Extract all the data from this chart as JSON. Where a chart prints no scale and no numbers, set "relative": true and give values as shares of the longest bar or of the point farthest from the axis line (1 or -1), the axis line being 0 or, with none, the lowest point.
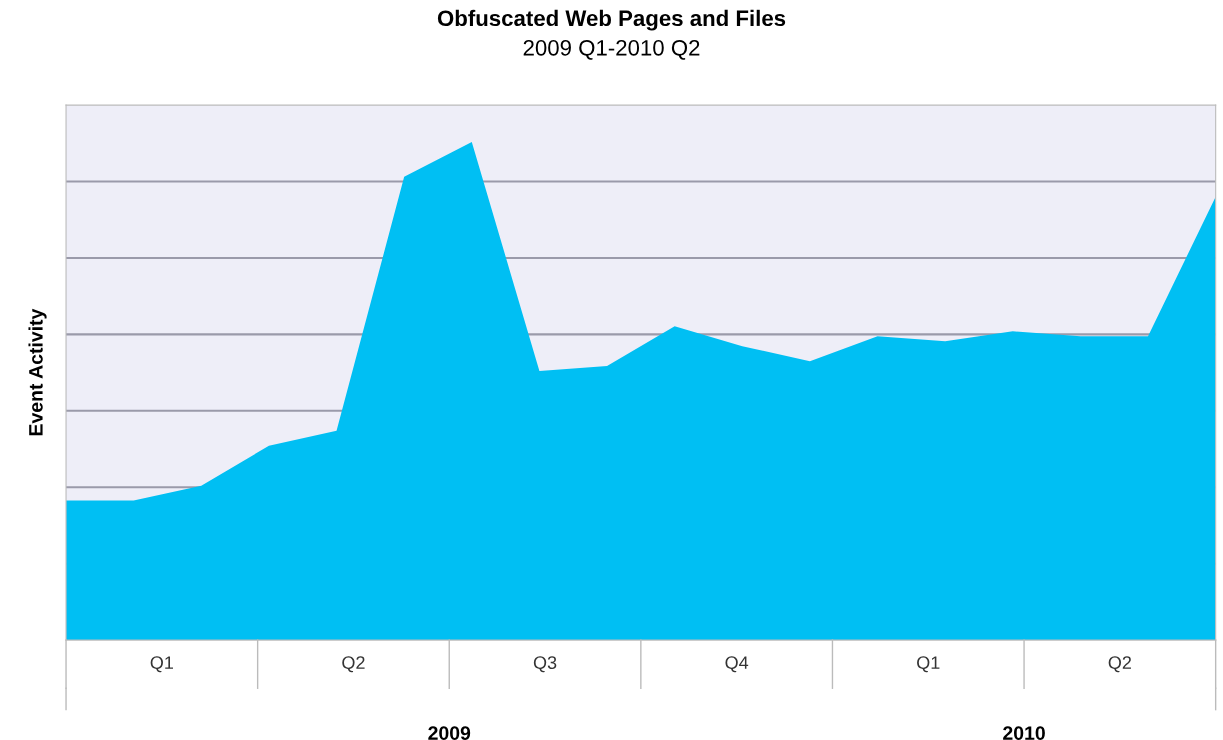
{
  "chart_data": {
    "type": "area",
    "title": "Obfuscated Web Pages and Files",
    "subtitle": "2009 Q1-2010 Q2",
    "ylabel": "Event Activity",
    "relative": true,
    "grid": "y",
    "categories": [
      null,
      null,
      null,
      null,
      null,
      null,
      null,
      null,
      null,
      null,
      null,
      null,
      null,
      null,
      null,
      null,
      null,
      null
    ],
    "series": [
      {
        "color": "#00bff3",
        "values": [
          0.28,
          0.28,
          0.31,
          0.39,
          0.42,
          0.93,
          1,
          0.54,
          0.55,
          0.63,
          0.59,
          0.56,
          0.61,
          0.6,
          0.62,
          0.61,
          0.61,
          0.89
        ]
      }
    ],
    "annotations": [
      "Q1",
      "Q2",
      "Q3",
      "Q4",
      "Q1",
      "Q2",
      "2009",
      "2010"
    ]
  }
}
